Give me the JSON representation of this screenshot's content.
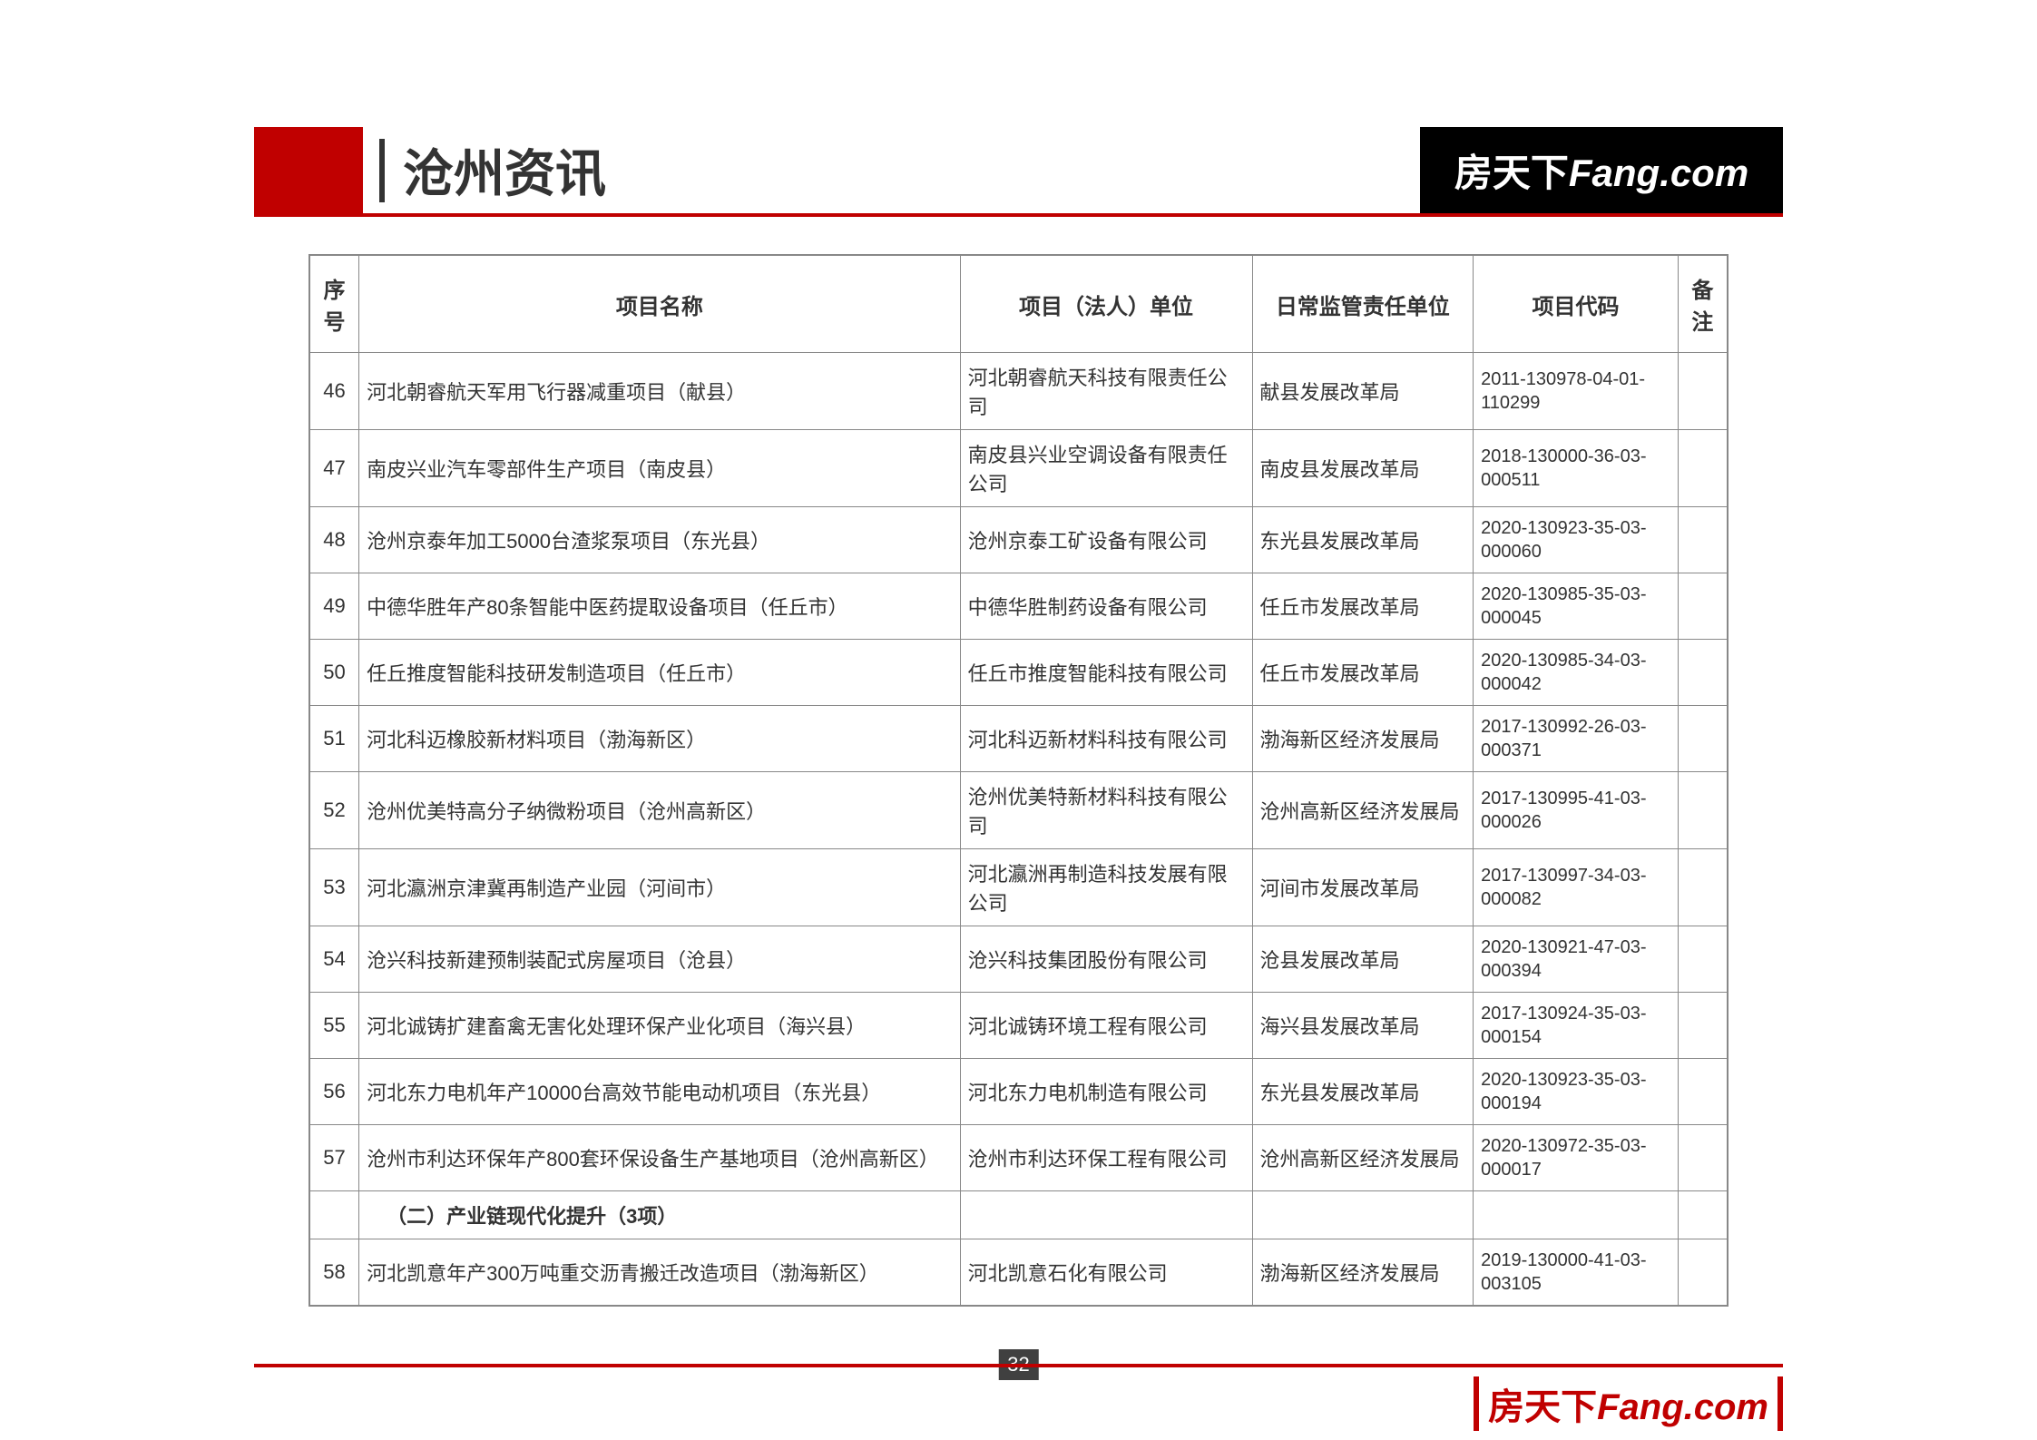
{
  "header": {
    "title": "沧州资讯",
    "brand_cn": "房天下",
    "brand_en": "Fang.com"
  },
  "table": {
    "columns": {
      "seq": "序号",
      "name": "项目名称",
      "unit": "项目（法人）单位",
      "supervise": "日常监管责任单位",
      "code": "项目代码",
      "remark": "备注"
    },
    "rows": [
      {
        "seq": "46",
        "name": "河北朝睿航天军用飞行器减重项目（献县）",
        "unit": "河北朝睿航天科技有限责任公司",
        "supervise": "献县发展改革局",
        "code": "2011-130978-04-01-110299",
        "remark": ""
      },
      {
        "seq": "47",
        "name": "南皮兴业汽车零部件生产项目（南皮县）",
        "unit": "南皮县兴业空调设备有限责任公司",
        "supervise": "南皮县发展改革局",
        "code": "2018-130000-36-03-000511",
        "remark": ""
      },
      {
        "seq": "48",
        "name": "沧州京泰年加工5000台渣浆泵项目（东光县）",
        "unit": "沧州京泰工矿设备有限公司",
        "supervise": "东光县发展改革局",
        "code": "2020-130923-35-03-000060",
        "remark": ""
      },
      {
        "seq": "49",
        "name": "中德华胜年产80条智能中医药提取设备项目（任丘市）",
        "unit": "中德华胜制药设备有限公司",
        "supervise": "任丘市发展改革局",
        "code": "2020-130985-35-03-000045",
        "remark": ""
      },
      {
        "seq": "50",
        "name": "任丘推度智能科技研发制造项目（任丘市）",
        "unit": "任丘市推度智能科技有限公司",
        "supervise": "任丘市发展改革局",
        "code": "2020-130985-34-03-000042",
        "remark": ""
      },
      {
        "seq": "51",
        "name": "河北科迈橡胶新材料项目（渤海新区）",
        "unit": "河北科迈新材料科技有限公司",
        "supervise": "渤海新区经济发展局",
        "code": "2017-130992-26-03-000371",
        "remark": ""
      },
      {
        "seq": "52",
        "name": "沧州优美特高分子纳微粉项目（沧州高新区）",
        "unit": "沧州优美特新材料科技有限公司",
        "supervise": "沧州高新区经济发展局",
        "code": "2017-130995-41-03-000026",
        "remark": ""
      },
      {
        "seq": "53",
        "name": "河北瀛洲京津冀再制造产业园（河间市）",
        "unit": "河北瀛洲再制造科技发展有限公司",
        "supervise": "河间市发展改革局",
        "code": "2017-130997-34-03-000082",
        "remark": ""
      },
      {
        "seq": "54",
        "name": "沧兴科技新建预制装配式房屋项目（沧县）",
        "unit": "沧兴科技集团股份有限公司",
        "supervise": "沧县发展改革局",
        "code": "2020-130921-47-03-000394",
        "remark": ""
      },
      {
        "seq": "55",
        "name": "河北诚铸扩建畜禽无害化处理环保产业化项目（海兴县）",
        "unit": "河北诚铸环境工程有限公司",
        "supervise": "海兴县发展改革局",
        "code": "2017-130924-35-03-000154",
        "remark": ""
      },
      {
        "seq": "56",
        "name": "河北东力电机年产10000台高效节能电动机项目（东光县）",
        "unit": "河北东力电机制造有限公司",
        "supervise": "东光县发展改革局",
        "code": "2020-130923-35-03-000194",
        "remark": ""
      },
      {
        "seq": "57",
        "name": "沧州市利达环保年产800套环保设备生产基地项目（沧州高新区）",
        "unit": "沧州市利达环保工程有限公司",
        "supervise": "沧州高新区经济发展局",
        "code": "2020-130972-35-03-000017",
        "remark": ""
      }
    ],
    "section": {
      "name": "（二）产业链现代化提升（3项）"
    },
    "rows2": [
      {
        "seq": "58",
        "name": "河北凯意年产300万吨重交沥青搬迁改造项目（渤海新区）",
        "unit": "河北凯意石化有限公司",
        "supervise": "渤海新区经济发展局",
        "code": "2019-130000-41-03-003105",
        "remark": ""
      }
    ]
  },
  "footer": {
    "page": "32",
    "brand_cn": "房天下",
    "brand_en": "Fang.com"
  }
}
